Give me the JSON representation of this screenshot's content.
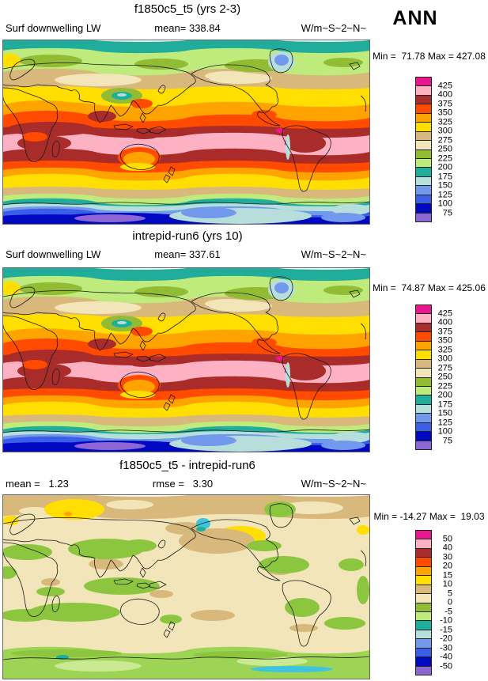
{
  "header": {
    "season": "ANN"
  },
  "palette": {
    "colors": [
      "#E8178F",
      "#FFB1C4",
      "#AA2C2A",
      "#FF4A00",
      "#FFA300",
      "#FFDE00",
      "#D9B97B",
      "#F2E5B9",
      "#91BC33",
      "#BFEB7C",
      "#21AD9B",
      "#B6DFDB",
      "#7399EE",
      "#3B5EE8",
      "#0009C2",
      "#8E66D4"
    ],
    "diff_green": "#8CC63F",
    "diff_light_green": "#CBE993",
    "diff_band_green": "#9ED455",
    "cyan_accent": "#3FC4E0"
  },
  "panels": [
    {
      "title": "f1850c5_t5 (yrs 2-3)",
      "left_label": "Surf downwelling LW",
      "mean_label": "mean= 338.84",
      "units": "W/m~S~2~N~",
      "minmax": "Min =  71.78 Max = 427.08",
      "colorbar_labels": [
        "425",
        "400",
        "375",
        "350",
        "325",
        "300",
        "275",
        "250",
        "225",
        "200",
        "175",
        "150",
        "125",
        "100",
        "75"
      ]
    },
    {
      "title": "intrepid-run6 (yrs 10)",
      "left_label": "Surf downwelling LW",
      "mean_label": "mean= 337.61",
      "units": "W/m~S~2~N~",
      "minmax": "Min =  74.87 Max = 425.06",
      "colorbar_labels": [
        "425",
        "400",
        "375",
        "350",
        "325",
        "300",
        "275",
        "250",
        "225",
        "200",
        "175",
        "150",
        "125",
        "100",
        "75"
      ]
    },
    {
      "title": "f1850c5_t5 - intrepid-run6",
      "mean_label": "mean =   1.23",
      "rmse_label": "rmse =   3.30",
      "units": "W/m~S~2~N~",
      "minmax": "Min = -14.27 Max =  19.03",
      "colorbar_labels": [
        "50",
        "40",
        "30",
        "20",
        "15",
        "10",
        "5",
        "0",
        "-5",
        "-10",
        "-15",
        "-20",
        "-30",
        "-40",
        "-50"
      ]
    }
  ],
  "chart_data": [
    {
      "type": "heatmap",
      "subtype": "filled-contour global map (cylindrical equidistant, 0-360E)",
      "title": "f1850c5_t5 (yrs 2-3)",
      "variable": "Surf downwelling LW",
      "units": "W/m~S~2~N~",
      "season": "ANN",
      "mean": 338.84,
      "min": 71.78,
      "max": 427.08,
      "contour_levels": [
        75,
        100,
        125,
        150,
        175,
        200,
        225,
        250,
        275,
        300,
        325,
        350,
        375,
        400,
        425
      ],
      "palette_low_to_high": [
        "#8E66D4",
        "#0009C2",
        "#3B5EE8",
        "#7399EE",
        "#B6DFDB",
        "#21AD9B",
        "#BFEB7C",
        "#91BC33",
        "#F2E5B9",
        "#D9B97B",
        "#FFDE00",
        "#FFA300",
        "#FF4A00",
        "#AA2C2A",
        "#FFB1C4",
        "#E8178F"
      ],
      "pattern": "zonal bands: 400-425 (pink) across tropics with >375 dark-red margins; decreasing poleward through orange/yellow/tan; 200-250 greens in Arctic; 75-150 blues with <100 purple over Antarctica; local minima over Greenland and Tibet (cyan/teal)"
    },
    {
      "type": "heatmap",
      "subtype": "filled-contour global map (cylindrical equidistant, 0-360E)",
      "title": "intrepid-run6 (yrs 10)",
      "variable": "Surf downwelling LW",
      "units": "W/m~S~2~N~",
      "season": "ANN",
      "mean": 337.61,
      "min": 74.87,
      "max": 425.06,
      "contour_levels": [
        75,
        100,
        125,
        150,
        175,
        200,
        225,
        250,
        275,
        300,
        325,
        350,
        375,
        400,
        425
      ],
      "pattern": "same zonal structure as f1850c5_t5 panel"
    },
    {
      "type": "heatmap",
      "subtype": "difference map (model minus model)",
      "title": "f1850c5_t5 - intrepid-run6",
      "mean": 1.23,
      "rmse": 3.3,
      "min": -14.27,
      "max": 19.03,
      "units": "W/m~S~2~N~",
      "contour_levels": [
        -50,
        -40,
        -30,
        -20,
        -15,
        -10,
        -5,
        0,
        5,
        10,
        15,
        20,
        30,
        40,
        50
      ],
      "pattern": "mostly 0 to 5 (beige); -5 to -10 (green) patches over Eurasia, oceans and a circum-Antarctic band; +5 to +10 (tan) across Arctic and subtropics; +10 to +20 (yellow) over central Canada and NW Siberia; small negative (cyan/teal) spots near Alaska and the Southern Ocean"
    }
  ]
}
